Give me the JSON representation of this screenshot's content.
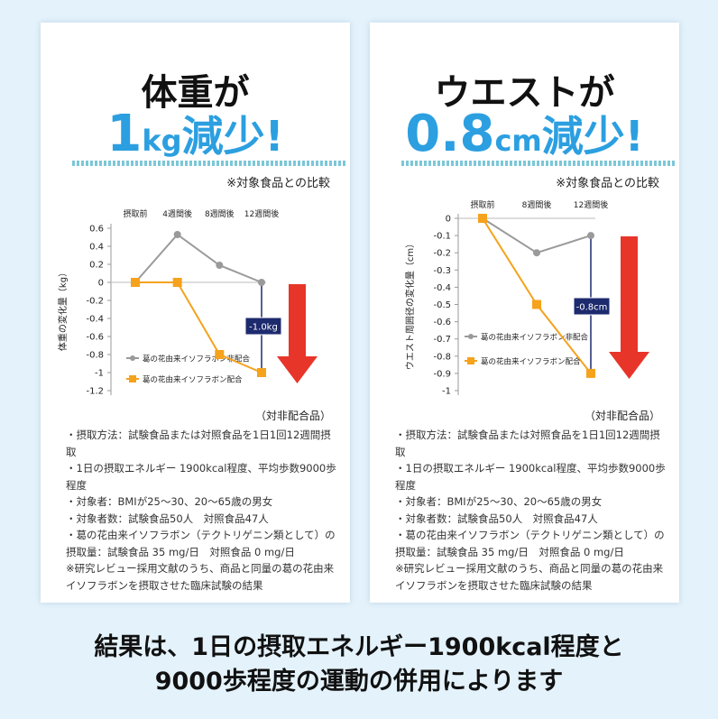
{
  "chart_data": [
    {
      "type": "line",
      "headline": "体重が",
      "result_number": "1",
      "result_unit": "kg",
      "result_text": "減少!",
      "comparison_note": "※対象食品との比較",
      "categories": [
        "摂取前",
        "4週間後",
        "8週間後",
        "12週間後"
      ],
      "y_label": "体重の変化量（kg）",
      "ylim": [
        -1.2,
        0.6
      ],
      "yticks": [
        0.6,
        0.4,
        0.2,
        0,
        -0.2,
        -0.4,
        -0.6,
        -0.8,
        -1,
        -1.2
      ],
      "series": [
        {
          "name": "葛の花由来イソフラボン非配合",
          "color": "#9a9a9a",
          "marker": "circle",
          "values": [
            0,
            0.53,
            0.19,
            0
          ]
        },
        {
          "name": "葛の花由来イソフラボン配合",
          "color": "#f5a21c",
          "marker": "square",
          "values": [
            0,
            0,
            -0.8,
            -1.0
          ]
        }
      ],
      "annotation": "-1.0kg",
      "subtitle": "（対非配合品）",
      "notes": [
        "・摂取方法：試験食品または対照食品を1日1回12週間摂取",
        "・1日の摂取エネルギー 1900kcal程度、平均歩数9000歩程度",
        "・対象者：BMIが25～30、20～65歳の男女",
        "・対象者数：試験食品50人　対照食品47人",
        "・葛の花由来イソフラボン（テクトリゲニン類として）の摂取量：試験食品 35 mg/日　対照食品 0 mg/日",
        "※研究レビュー採用文献のうち、商品と同量の葛の花由来イソフラボンを摂取させた臨床試験の結果"
      ]
    },
    {
      "type": "line",
      "headline": "ウエストが",
      "result_number": "0.8",
      "result_unit": "cm",
      "result_text": "減少!",
      "comparison_note": "※対象食品との比較",
      "categories": [
        "摂取前",
        "8週間後",
        "12週間後"
      ],
      "y_label": "ウエスト周囲径の変化量（cm）",
      "ylim": [
        -1,
        0
      ],
      "yticks": [
        0,
        -0.1,
        -0.2,
        -0.3,
        -0.4,
        -0.5,
        -0.6,
        -0.7,
        -0.8,
        -0.9,
        -1
      ],
      "series": [
        {
          "name": "葛の花由来イソフラボン非配合",
          "color": "#9a9a9a",
          "marker": "circle",
          "values": [
            0,
            -0.2,
            -0.1
          ]
        },
        {
          "name": "葛の花由来イソフラボン配合",
          "color": "#f5a21c",
          "marker": "square",
          "values": [
            0,
            -0.5,
            -0.9
          ]
        }
      ],
      "annotation": "-0.8cm",
      "subtitle": "（対非配合品）",
      "notes": [
        "・摂取方法：試験食品または対照食品を1日1回12週間摂取",
        "・1日の摂取エネルギー 1900kcal程度、平均歩数9000歩程度",
        "・対象者：BMIが25～30、20～65歳の男女",
        "・対象者数：試験食品50人　対照食品47人",
        "・葛の花由来イソフラボン（テクトリゲニン類として）の摂取量：試験食品 35 mg/日　対照食品 0 mg/日",
        "※研究レビュー採用文献のうち、商品と同量の葛の花由来イソフラボンを摂取させた臨床試験の結果"
      ]
    }
  ],
  "footer": [
    "結果は、1日の摂取エネルギー1900kcal程度と",
    "9000歩程度の運動の併用によります"
  ]
}
